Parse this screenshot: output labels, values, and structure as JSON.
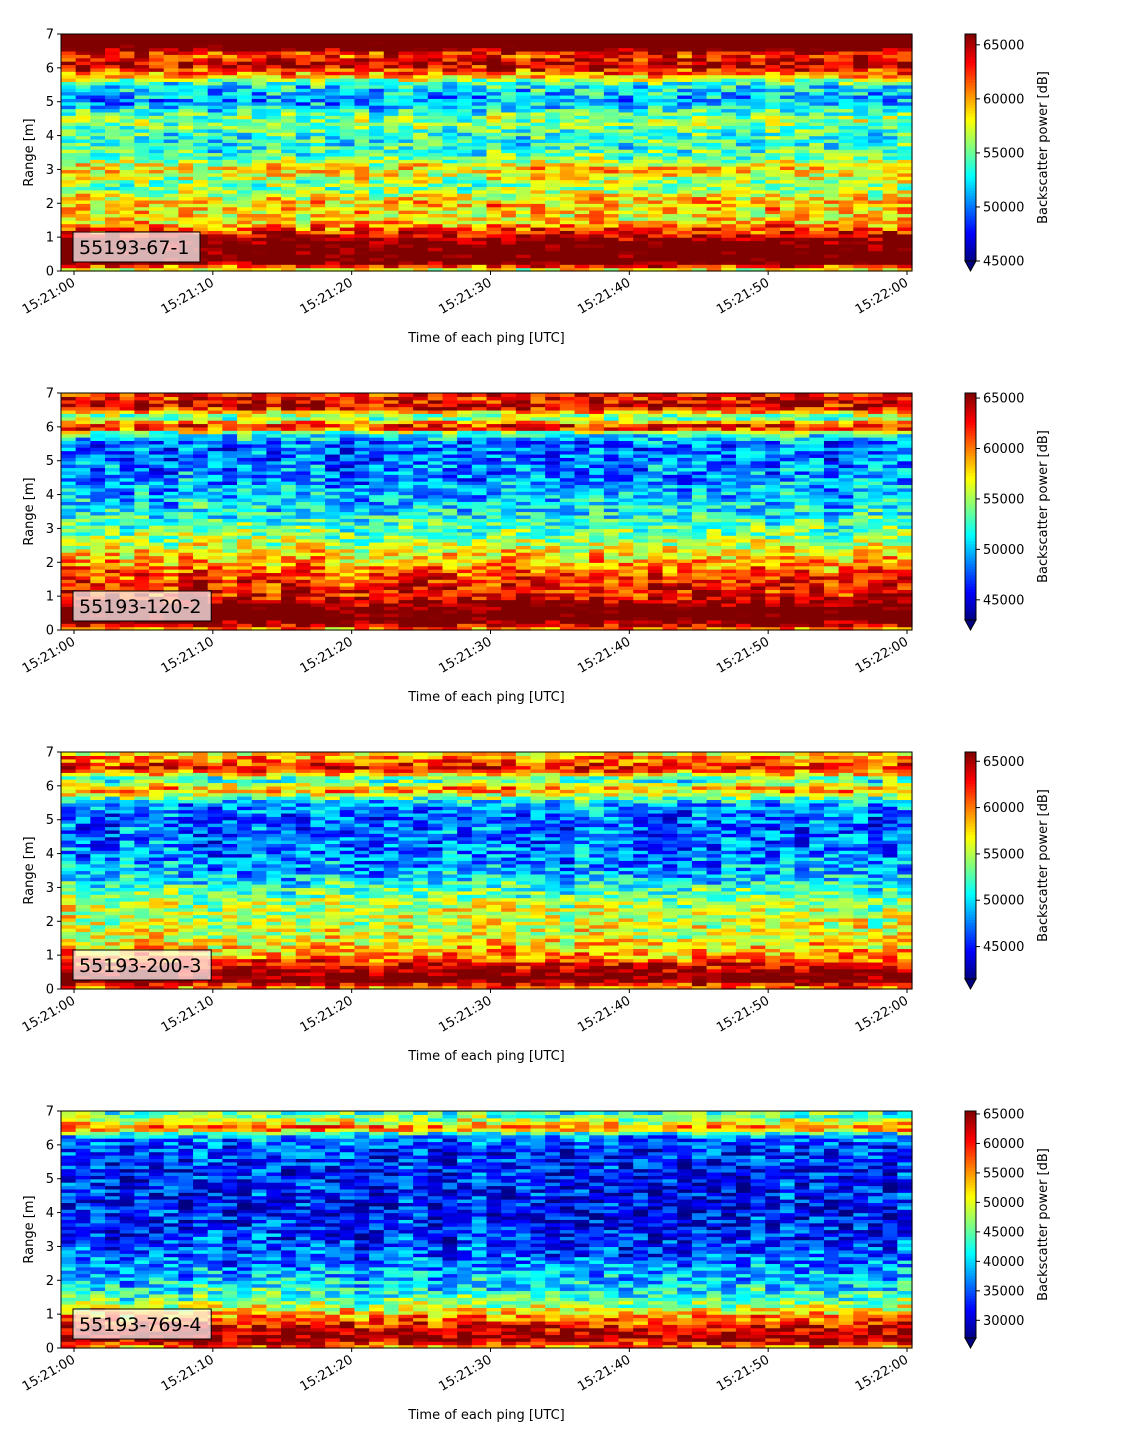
{
  "chart_data": [
    {
      "type": "heatmap",
      "label": "55193-67-1",
      "xlabel": "Time of each ping [UTC]",
      "ylabel": "Range [m]",
      "xlim": [
        "15:21:00",
        "15:22:00"
      ],
      "ylim": [
        0,
        7
      ],
      "x_ticks": [
        "15:21:00",
        "15:21:10",
        "15:21:20",
        "15:21:30",
        "15:21:40",
        "15:21:50",
        "15:22:00"
      ],
      "y_ticks": [
        0,
        1,
        2,
        3,
        4,
        5,
        6,
        7
      ],
      "colormap": "jet",
      "colorbar": {
        "label": "Backscatter power [dB]",
        "min": 45000,
        "max": 66000,
        "ticks": [
          45000,
          50000,
          55000,
          60000,
          65000
        ],
        "extend": "min"
      },
      "profile": [
        {
          "range": 0.05,
          "value": 58000
        },
        {
          "range": 0.3,
          "value": 69000
        },
        {
          "range": 0.6,
          "value": 68000
        },
        {
          "range": 0.9,
          "value": 67000
        },
        {
          "range": 1.2,
          "value": 62000
        },
        {
          "range": 1.6,
          "value": 58000
        },
        {
          "range": 2.0,
          "value": 59500
        },
        {
          "range": 2.5,
          "value": 55000
        },
        {
          "range": 3.0,
          "value": 59000
        },
        {
          "range": 3.5,
          "value": 54000
        },
        {
          "range": 4.0,
          "value": 53500
        },
        {
          "range": 4.5,
          "value": 56000
        },
        {
          "range": 5.0,
          "value": 50500
        },
        {
          "range": 5.5,
          "value": 53000
        },
        {
          "range": 5.8,
          "value": 60000
        },
        {
          "range": 6.1,
          "value": 65000
        },
        {
          "range": 6.4,
          "value": 62000
        },
        {
          "range": 6.7,
          "value": 70000
        },
        {
          "range": 7.0,
          "value": 70000
        }
      ]
    },
    {
      "type": "heatmap",
      "label": "55193-120-2",
      "xlabel": "Time of each ping [UTC]",
      "ylabel": "Range [m]",
      "xlim": [
        "15:21:00",
        "15:22:00"
      ],
      "ylim": [
        0,
        7
      ],
      "x_ticks": [
        "15:21:00",
        "15:21:10",
        "15:21:20",
        "15:21:30",
        "15:21:40",
        "15:21:50",
        "15:22:00"
      ],
      "y_ticks": [
        0,
        1,
        2,
        3,
        4,
        5,
        6,
        7
      ],
      "colormap": "jet",
      "colorbar": {
        "label": "Backscatter power [dB]",
        "min": 43000,
        "max": 65500,
        "ticks": [
          45000,
          50000,
          55000,
          60000,
          65000
        ],
        "extend": "min"
      },
      "profile": [
        {
          "range": 0.05,
          "value": 60000
        },
        {
          "range": 0.3,
          "value": 68000
        },
        {
          "range": 0.6,
          "value": 68000
        },
        {
          "range": 1.0,
          "value": 63000
        },
        {
          "range": 1.5,
          "value": 62000
        },
        {
          "range": 2.0,
          "value": 59000
        },
        {
          "range": 2.5,
          "value": 56000
        },
        {
          "range": 3.0,
          "value": 53500
        },
        {
          "range": 3.5,
          "value": 51500
        },
        {
          "range": 4.0,
          "value": 50000
        },
        {
          "range": 4.5,
          "value": 49000
        },
        {
          "range": 5.0,
          "value": 48500
        },
        {
          "range": 5.5,
          "value": 48000
        },
        {
          "range": 5.8,
          "value": 52000
        },
        {
          "range": 6.0,
          "value": 64000
        },
        {
          "range": 6.3,
          "value": 53000
        },
        {
          "range": 6.6,
          "value": 64000
        },
        {
          "range": 7.0,
          "value": 62000
        }
      ]
    },
    {
      "type": "heatmap",
      "label": "55193-200-3",
      "xlabel": "Time of each ping [UTC]",
      "ylabel": "Range [m]",
      "xlim": [
        "15:21:00",
        "15:22:00"
      ],
      "ylim": [
        0,
        7
      ],
      "x_ticks": [
        "15:21:00",
        "15:21:10",
        "15:21:20",
        "15:21:30",
        "15:21:40",
        "15:21:50",
        "15:22:00"
      ],
      "y_ticks": [
        0,
        1,
        2,
        3,
        4,
        5,
        6,
        7
      ],
      "colormap": "jet",
      "colorbar": {
        "label": "Backscatter power [dB]",
        "min": 41500,
        "max": 66000,
        "ticks": [
          45000,
          50000,
          55000,
          60000,
          65000
        ],
        "extend": "min"
      },
      "profile": [
        {
          "range": 0.05,
          "value": 60000
        },
        {
          "range": 0.3,
          "value": 68000
        },
        {
          "range": 0.7,
          "value": 64000
        },
        {
          "range": 1.0,
          "value": 59000
        },
        {
          "range": 1.5,
          "value": 56500
        },
        {
          "range": 2.0,
          "value": 55500
        },
        {
          "range": 2.5,
          "value": 55000
        },
        {
          "range": 3.0,
          "value": 52000
        },
        {
          "range": 3.5,
          "value": 48500
        },
        {
          "range": 4.0,
          "value": 47500
        },
        {
          "range": 4.5,
          "value": 47000
        },
        {
          "range": 5.0,
          "value": 47000
        },
        {
          "range": 5.5,
          "value": 48500
        },
        {
          "range": 5.9,
          "value": 60000
        },
        {
          "range": 6.2,
          "value": 51000
        },
        {
          "range": 6.5,
          "value": 63000
        },
        {
          "range": 6.8,
          "value": 60000
        },
        {
          "range": 7.0,
          "value": 57000
        }
      ]
    },
    {
      "type": "heatmap",
      "label": "55193-769-4",
      "xlabel": "Time of each ping [UTC]",
      "ylabel": "Range [m]",
      "xlim": [
        "15:21:00",
        "15:22:00"
      ],
      "ylim": [
        0,
        7
      ],
      "x_ticks": [
        "15:21:00",
        "15:21:10",
        "15:21:20",
        "15:21:30",
        "15:21:40",
        "15:21:50",
        "15:22:00"
      ],
      "y_ticks": [
        0,
        1,
        2,
        3,
        4,
        5,
        6,
        7
      ],
      "colormap": "jet",
      "colorbar": {
        "label": "Backscatter power [dB]",
        "min": 27000,
        "max": 65500,
        "ticks": [
          30000,
          35000,
          40000,
          45000,
          50000,
          55000,
          60000,
          65000
        ],
        "extend": "min"
      },
      "profile": [
        {
          "range": 0.05,
          "value": 56000
        },
        {
          "range": 0.3,
          "value": 66000
        },
        {
          "range": 0.6,
          "value": 62000
        },
        {
          "range": 0.9,
          "value": 56000
        },
        {
          "range": 1.3,
          "value": 47000
        },
        {
          "range": 1.8,
          "value": 41000
        },
        {
          "range": 2.3,
          "value": 38000
        },
        {
          "range": 2.8,
          "value": 34500
        },
        {
          "range": 3.5,
          "value": 33000
        },
        {
          "range": 4.0,
          "value": 32500
        },
        {
          "range": 4.5,
          "value": 32500
        },
        {
          "range": 5.0,
          "value": 32500
        },
        {
          "range": 5.5,
          "value": 33000
        },
        {
          "range": 6.0,
          "value": 34500
        },
        {
          "range": 6.3,
          "value": 38000
        },
        {
          "range": 6.5,
          "value": 58000
        },
        {
          "range": 6.8,
          "value": 46000
        },
        {
          "range": 7.0,
          "value": 43000
        }
      ]
    }
  ]
}
